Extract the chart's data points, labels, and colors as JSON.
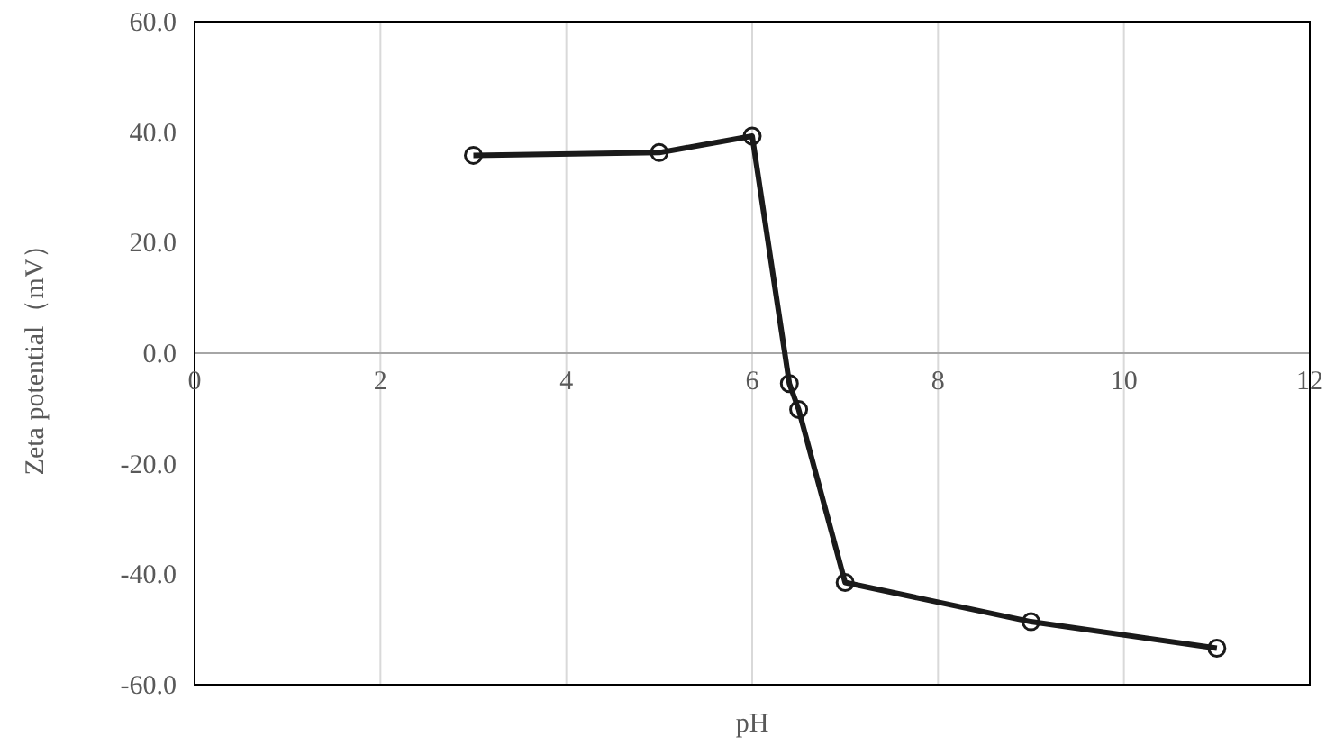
{
  "chart_data": {
    "type": "line",
    "xlabel": "pH",
    "ylabel": "Zeta potential（mV）",
    "x": [
      3,
      5,
      6,
      6.4,
      6.5,
      7,
      9,
      11
    ],
    "series": [
      {
        "color": "#1a1a1a",
        "values": [
          35.8,
          36.3,
          39.3,
          -5.5,
          -10.2,
          -41.5,
          -48.6,
          -53.4
        ]
      }
    ],
    "xlim": [
      0,
      12
    ],
    "xticks": [
      0,
      2,
      4,
      6,
      8,
      10,
      12
    ],
    "ylim": [
      -60,
      60
    ],
    "yticks": [
      {
        "value": -60,
        "label": "-60.0"
      },
      {
        "value": -40,
        "label": "-40.0"
      },
      {
        "value": -20,
        "label": "-20.0"
      },
      {
        "value": 0,
        "label": "0.0"
      },
      {
        "value": 20,
        "label": "20.0"
      },
      {
        "value": 40,
        "label": "40.0"
      },
      {
        "value": 60,
        "label": "60.0"
      }
    ],
    "grid": "x",
    "marker": "circle",
    "line_style": "solid"
  }
}
